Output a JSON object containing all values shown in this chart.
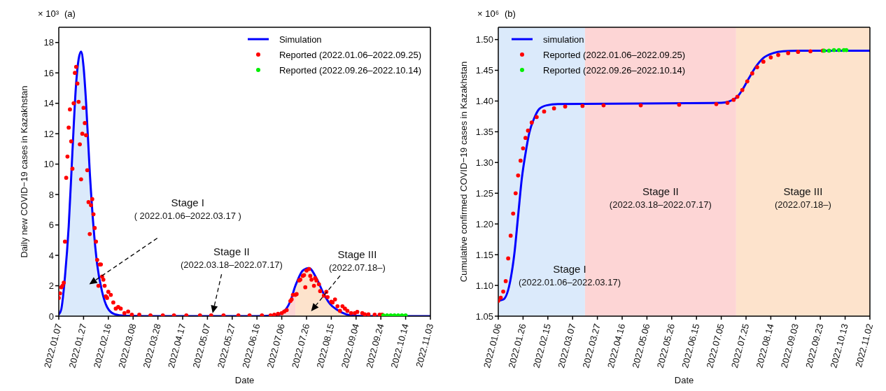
{
  "chart_data": [
    {
      "type": "line",
      "title": "(a)",
      "xlabel": "Date",
      "ylabel": "Daily new COVID−19 cases in Kazakhstan",
      "legend": "top right",
      "xlim": [
        "2022-01-07",
        "2022-11-03"
      ],
      "ylim": [
        0,
        19
      ],
      "yticks": [
        0,
        2,
        4,
        6,
        8,
        10,
        12,
        14,
        16,
        18
      ],
      "xticks": [
        {
          "value": "2022-01-07",
          "label": "2022.01.07"
        },
        {
          "value": "2022-01-27",
          "label": "2022.01.27"
        },
        {
          "value": "2022-02-16",
          "label": "2022.02.16"
        },
        {
          "value": "2022-03-08",
          "label": "2022.03.08"
        },
        {
          "value": "2022-03-28",
          "label": "2022.03.28"
        },
        {
          "value": "2022-04-17",
          "label": "2022.04.17"
        },
        {
          "value": "2022-05-07",
          "label": "2022.05.07"
        },
        {
          "value": "2022-05-27",
          "label": "2022.05.27"
        },
        {
          "value": "2022-06-16",
          "label": "2022.06.16"
        },
        {
          "value": "2022-07-06",
          "label": "2022.07.06"
        },
        {
          "value": "2022-07-26",
          "label": "2022.07.26"
        },
        {
          "value": "2022-08-15",
          "label": "2022.08.15"
        },
        {
          "value": "2022-09-04",
          "label": "2022.09.04"
        },
        {
          "value": "2022-09-24",
          "label": "2022.09.24"
        },
        {
          "value": "2022-10-14",
          "label": "2022.10.14"
        },
        {
          "value": "2022-11-03",
          "label": "2022.11.03"
        }
      ],
      "annotations": [
        "× 10³",
        "Stage I\n( 2022.01.06–2022.03.17 )",
        "Stage II\n(2022.03.18–2022.07.17)",
        "Stage III\n(2022.07.18–)"
      ],
      "series": [
        {
          "type": "area",
          "color": "#dbeafb",
          "x": [
            "2022-01-07",
            "2022-01-09",
            "2022-01-12",
            "2022-01-15",
            "2022-01-18",
            "2022-01-21",
            "2022-01-23",
            "2022-01-25",
            "2022-01-27",
            "2022-01-29",
            "2022-02-01",
            "2022-02-04",
            "2022-02-07",
            "2022-02-11",
            "2022-02-15",
            "2022-02-21",
            "2022-03-01",
            "2022-03-17"
          ],
          "values": [
            0.1,
            0.45,
            2.6,
            5.9,
            10.8,
            15.3,
            16.9,
            17.4,
            16.4,
            14.1,
            9.5,
            5.9,
            3.4,
            1.6,
            0.6,
            0.13,
            0.02,
            0
          ]
        },
        {
          "type": "area",
          "color": "#fdd5d5",
          "x": [
            "2022-03-17",
            "2022-05-01",
            "2022-06-15",
            "2022-06-30",
            "2022-07-06",
            "2022-07-13",
            "2022-07-17"
          ],
          "values": [
            0,
            0,
            0,
            0.05,
            0.2,
            1.0,
            2.0
          ]
        },
        {
          "type": "area",
          "color": "#fde3cc",
          "x": [
            "2022-07-17",
            "2022-07-18",
            "2022-07-23",
            "2022-07-28",
            "2022-08-03",
            "2022-08-09",
            "2022-08-14",
            "2022-08-20",
            "2022-08-27",
            "2022-09-03",
            "2022-09-20",
            "2022-11-03"
          ],
          "values": [
            2.0,
            2.2,
            3.0,
            3.16,
            2.5,
            1.45,
            0.8,
            0.4,
            0.12,
            0.03,
            0,
            0
          ]
        },
        {
          "type": "line",
          "name": "Simulation",
          "color": "#0000ff",
          "x": [
            "2022-01-07",
            "2022-01-09",
            "2022-01-12",
            "2022-01-15",
            "2022-01-18",
            "2022-01-21",
            "2022-01-23",
            "2022-01-25",
            "2022-01-27",
            "2022-01-29",
            "2022-02-01",
            "2022-02-04",
            "2022-02-07",
            "2022-02-11",
            "2022-02-15",
            "2022-02-21",
            "2022-03-01",
            "2022-03-17",
            "2022-05-01",
            "2022-06-15",
            "2022-06-30",
            "2022-07-06",
            "2022-07-13",
            "2022-07-17",
            "2022-07-18",
            "2022-07-23",
            "2022-07-28",
            "2022-08-03",
            "2022-08-09",
            "2022-08-14",
            "2022-08-20",
            "2022-08-27",
            "2022-09-03",
            "2022-09-20",
            "2022-11-03"
          ],
          "values": [
            0.1,
            0.45,
            2.6,
            5.9,
            10.8,
            15.3,
            16.9,
            17.4,
            16.4,
            14.1,
            9.5,
            5.9,
            3.4,
            1.6,
            0.6,
            0.13,
            0.02,
            0,
            0,
            0,
            0.05,
            0.2,
            1.0,
            2.0,
            2.2,
            3.0,
            3.16,
            2.5,
            1.45,
            0.8,
            0.4,
            0.12,
            0.03,
            0,
            0
          ]
        },
        {
          "type": "scatter",
          "marker": "circle",
          "name": "Reported (2022.01.06–2022.09.25)",
          "color": "#ff0000",
          "x": [
            "2022-01-07",
            "2022-01-08",
            "2022-01-09",
            "2022-01-10",
            "2022-01-11",
            "2022-01-12",
            "2022-01-13",
            "2022-01-14",
            "2022-01-15",
            "2022-01-16",
            "2022-01-17",
            "2022-01-18",
            "2022-01-19",
            "2022-01-20",
            "2022-01-21",
            "2022-01-22",
            "2022-01-23",
            "2022-01-24",
            "2022-01-25",
            "2022-01-26",
            "2022-01-27",
            "2022-01-28",
            "2022-01-29",
            "2022-01-30",
            "2022-01-31",
            "2022-02-01",
            "2022-02-02",
            "2022-02-03",
            "2022-02-04",
            "2022-02-05",
            "2022-02-06",
            "2022-02-07",
            "2022-02-08",
            "2022-02-09",
            "2022-02-10",
            "2022-02-11",
            "2022-02-12",
            "2022-02-13",
            "2022-02-14",
            "2022-02-15",
            "2022-02-16",
            "2022-02-18",
            "2022-02-20",
            "2022-02-22",
            "2022-02-24",
            "2022-02-26",
            "2022-03-01",
            "2022-03-04",
            "2022-03-07",
            "2022-03-13",
            "2022-03-22",
            "2022-04-01",
            "2022-04-10",
            "2022-04-20",
            "2022-05-01",
            "2022-05-10",
            "2022-05-20",
            "2022-06-01",
            "2022-06-10",
            "2022-06-20",
            "2022-06-27",
            "2022-06-30",
            "2022-07-03",
            "2022-07-06",
            "2022-07-08",
            "2022-07-10",
            "2022-07-13",
            "2022-07-14",
            "2022-07-15",
            "2022-07-17",
            "2022-07-18",
            "2022-07-20",
            "2022-07-21",
            "2022-07-23",
            "2022-07-24",
            "2022-07-25",
            "2022-07-26",
            "2022-07-28",
            "2022-07-29",
            "2022-07-30",
            "2022-08-01",
            "2022-08-02",
            "2022-08-03",
            "2022-08-05",
            "2022-08-06",
            "2022-08-09",
            "2022-08-11",
            "2022-08-12",
            "2022-08-15",
            "2022-08-16",
            "2022-08-18",
            "2022-08-20",
            "2022-08-22",
            "2022-08-24",
            "2022-08-26",
            "2022-08-28",
            "2022-08-31",
            "2022-09-03",
            "2022-09-05",
            "2022-09-09",
            "2022-09-11",
            "2022-09-14",
            "2022-09-19",
            "2022-09-23",
            "2022-09-25"
          ],
          "values": [
            1.2,
            1.5,
            1.9,
            2.0,
            2.2,
            4.9,
            9.1,
            10.5,
            12.4,
            13.6,
            11.5,
            9.7,
            14.0,
            16.0,
            16.4,
            15.3,
            14.1,
            11.3,
            9.0,
            12.0,
            13.7,
            12.7,
            11.9,
            9.6,
            7.5,
            5.4,
            7.3,
            7.7,
            6.7,
            5.8,
            4.9,
            3.7,
            2.0,
            3.4,
            3.4,
            2.6,
            2.4,
            2.0,
            1.3,
            1.2,
            1.6,
            1.4,
            0.9,
            0.5,
            0.6,
            0.5,
            0.2,
            0.3,
            0.1,
            0.1,
            0.05,
            0.05,
            0.05,
            0.05,
            0.05,
            0.05,
            0.05,
            0.05,
            0.05,
            0.05,
            0.05,
            0.1,
            0.15,
            0.2,
            0.3,
            0.4,
            1.0,
            1.1,
            1.4,
            1.4,
            1.45,
            2.35,
            2.4,
            2.65,
            2.7,
            1.9,
            3.0,
            3.1,
            2.65,
            2.4,
            2.0,
            2.5,
            2.35,
            2.1,
            1.65,
            1.35,
            1.6,
            1.25,
            0.95,
            0.9,
            1.1,
            0.65,
            0.35,
            0.65,
            0.5,
            0.35,
            0.2,
            0.2,
            0.28,
            0.2,
            0.12,
            0.12,
            0.1,
            0.1,
            0.1
          ]
        },
        {
          "type": "scatter",
          "marker": "circle",
          "name": "Reported (2022.09.26–2022.10.14)",
          "color": "#00ee00",
          "x": [
            "2022-09-26",
            "2022-09-29",
            "2022-10-02",
            "2022-10-05",
            "2022-10-08",
            "2022-10-11",
            "2022-10-14"
          ],
          "values": [
            0.05,
            0.05,
            0.05,
            0.05,
            0.05,
            0.05,
            0.05
          ]
        }
      ]
    },
    {
      "type": "line",
      "title": "(b)",
      "xlabel": "Date",
      "ylabel": "Cumulative confirmed COVID−19 cases in Kazakhstan",
      "legend": "top left",
      "xlim": [
        "2022-01-06",
        "2022-11-02"
      ],
      "ylim": [
        1.05,
        1.52
      ],
      "yticks": [
        1.05,
        {
          "value": 1.1,
          "label": "1.10"
        },
        1.15,
        {
          "value": 1.2,
          "label": "1.20"
        },
        1.25,
        {
          "value": 1.3,
          "label": "1.30"
        },
        1.35,
        {
          "value": 1.4,
          "label": "1.40"
        },
        1.45,
        {
          "value": 1.5,
          "label": "1.50"
        }
      ],
      "xticks": [
        {
          "value": "2022-01-06",
          "label": "2022.01.06"
        },
        {
          "value": "2022-01-26",
          "label": "2022.01.26"
        },
        {
          "value": "2022-02-15",
          "label": "2022.02.15"
        },
        {
          "value": "2022-03-07",
          "label": "2022.03.07"
        },
        {
          "value": "2022-03-27",
          "label": "2022.03.27"
        },
        {
          "value": "2022-04-16",
          "label": "2022.04.16"
        },
        {
          "value": "2022-05-06",
          "label": "2022.05.06"
        },
        {
          "value": "2022-05-26",
          "label": "2022.05.26"
        },
        {
          "value": "2022-06-15",
          "label": "2022.06.15"
        },
        {
          "value": "2022-07-05",
          "label": "2022.07.05"
        },
        {
          "value": "2022-07-25",
          "label": "2022.07.25"
        },
        {
          "value": "2022-08-14",
          "label": "2022.08.14"
        },
        {
          "value": "2022-09-03",
          "label": "2022.09.03"
        },
        {
          "value": "2022-09-23",
          "label": "2022.09.23"
        },
        {
          "value": "2022-10-13",
          "label": "2022.10.13"
        },
        {
          "value": "2022-11-02",
          "label": "2022.11.02"
        }
      ],
      "annotations": [
        "× 10⁶"
      ],
      "bands": [
        {
          "axis": "x",
          "from": "2022-01-06",
          "to": "2022-03-17",
          "label": "Stage I\n(2022.01.06–2022.03.17)",
          "color": "#dbeafb"
        },
        {
          "axis": "x",
          "from": "2022-03-17",
          "to": "2022-07-17",
          "label": "Stage II\n(2022.03.18–2022.07.17)",
          "color": "#fdd5d5"
        },
        {
          "axis": "x",
          "from": "2022-07-17",
          "to": "2022-11-02",
          "label": "Stage III\n(2022.07.18–)",
          "color": "#fde3cc"
        }
      ],
      "series": [
        {
          "type": "line",
          "name": "simulation",
          "color": "#0000ff",
          "x": [
            "2022-01-06",
            "2022-01-10",
            "2022-01-16",
            "2022-01-19",
            "2022-01-22",
            "2022-01-25",
            "2022-01-28",
            "2022-01-31",
            "2022-02-04",
            "2022-02-08",
            "2022-02-14",
            "2022-02-23",
            "2022-07-05",
            "2022-07-17",
            "2022-07-21",
            "2022-07-27",
            "2022-08-02",
            "2022-08-08",
            "2022-08-16",
            "2022-08-24",
            "2022-09-05",
            "2022-11-02"
          ],
          "values": [
            1.075,
            1.077,
            1.111,
            1.152,
            1.213,
            1.274,
            1.315,
            1.348,
            1.372,
            1.387,
            1.393,
            1.395,
            1.397,
            1.405,
            1.415,
            1.436,
            1.456,
            1.47,
            1.478,
            1.481,
            1.482,
            1.482
          ]
        },
        {
          "type": "scatter",
          "marker": "circle",
          "name": "Reported (2022.01.06–2022.09.25)",
          "color": "#ff0000",
          "x": [
            "2022-01-06",
            "2022-01-08",
            "2022-01-10",
            "2022-01-12",
            "2022-01-14",
            "2022-01-16",
            "2022-01-18",
            "2022-01-20",
            "2022-01-22",
            "2022-01-24",
            "2022-01-26",
            "2022-01-28",
            "2022-01-30",
            "2022-02-02",
            "2022-02-06",
            "2022-02-12",
            "2022-02-20",
            "2022-03-01",
            "2022-03-15",
            "2022-04-01",
            "2022-05-01",
            "2022-06-01",
            "2022-07-01",
            "2022-07-10",
            "2022-07-15",
            "2022-07-18",
            "2022-07-22",
            "2022-07-26",
            "2022-07-30",
            "2022-08-03",
            "2022-08-08",
            "2022-08-14",
            "2022-08-20",
            "2022-08-28",
            "2022-09-05",
            "2022-09-15",
            "2022-09-25"
          ],
          "values": [
            1.075,
            1.08,
            1.09,
            1.107,
            1.144,
            1.181,
            1.217,
            1.25,
            1.279,
            1.303,
            1.323,
            1.34,
            1.352,
            1.365,
            1.374,
            1.383,
            1.388,
            1.391,
            1.392,
            1.393,
            1.393,
            1.394,
            1.395,
            1.397,
            1.402,
            1.407,
            1.418,
            1.432,
            1.445,
            1.455,
            1.464,
            1.471,
            1.475,
            1.478,
            1.48,
            1.481,
            1.482
          ]
        },
        {
          "type": "scatter",
          "marker": "circle",
          "name": "Reported (2022.09.26–2022.10.14)",
          "color": "#00ee00",
          "x": [
            "2022-09-26",
            "2022-09-30",
            "2022-10-04",
            "2022-10-08",
            "2022-10-12",
            "2022-10-14"
          ],
          "values": [
            1.482,
            1.482,
            1.483,
            1.483,
            1.483,
            1.483
          ]
        }
      ]
    }
  ]
}
